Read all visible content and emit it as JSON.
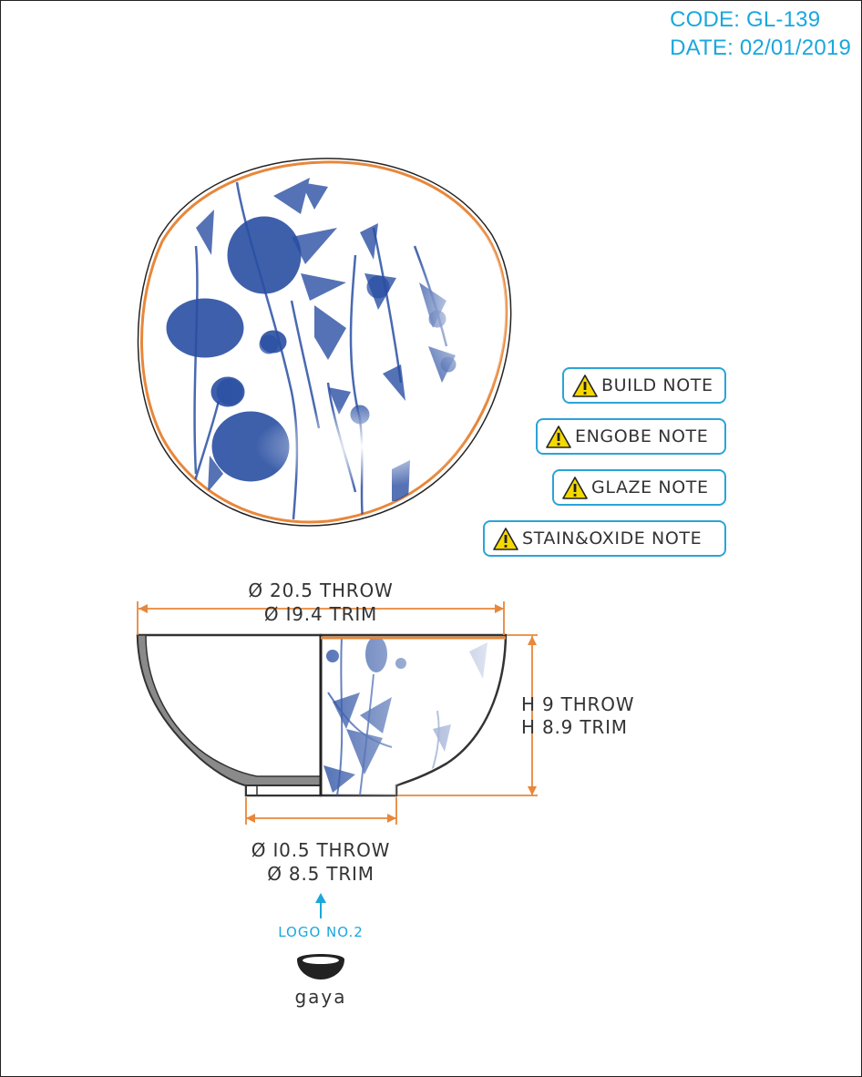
{
  "header": {
    "code": "CODE: GL-139",
    "date": "DATE: 02/01/2019"
  },
  "notes": [
    {
      "label": "BUILD NOTE",
      "icon": "warning-icon"
    },
    {
      "label": "ENGOBE NOTE",
      "icon": "warning-icon"
    },
    {
      "label": "GLAZE NOTE",
      "icon": "warning-icon"
    },
    {
      "label": "STAIN&OXIDE NOTE",
      "icon": "warning-icon"
    }
  ],
  "dimensions": {
    "top_throw": "Ø 20.5 THROW",
    "top_trim": "Ø I9.4 TRIM",
    "height_throw": "H 9 THROW",
    "height_trim": "H 8.9 TRIM",
    "base_throw": "Ø I0.5 THROW",
    "base_trim": "Ø 8.5 TRIM"
  },
  "logo": {
    "label": "LOGO NO.2",
    "brand": "gaya"
  },
  "colors": {
    "accent": "#1aa7dc",
    "dimension_line": "#e8873a",
    "floral": "#2a4fa3",
    "outline": "#333333"
  }
}
